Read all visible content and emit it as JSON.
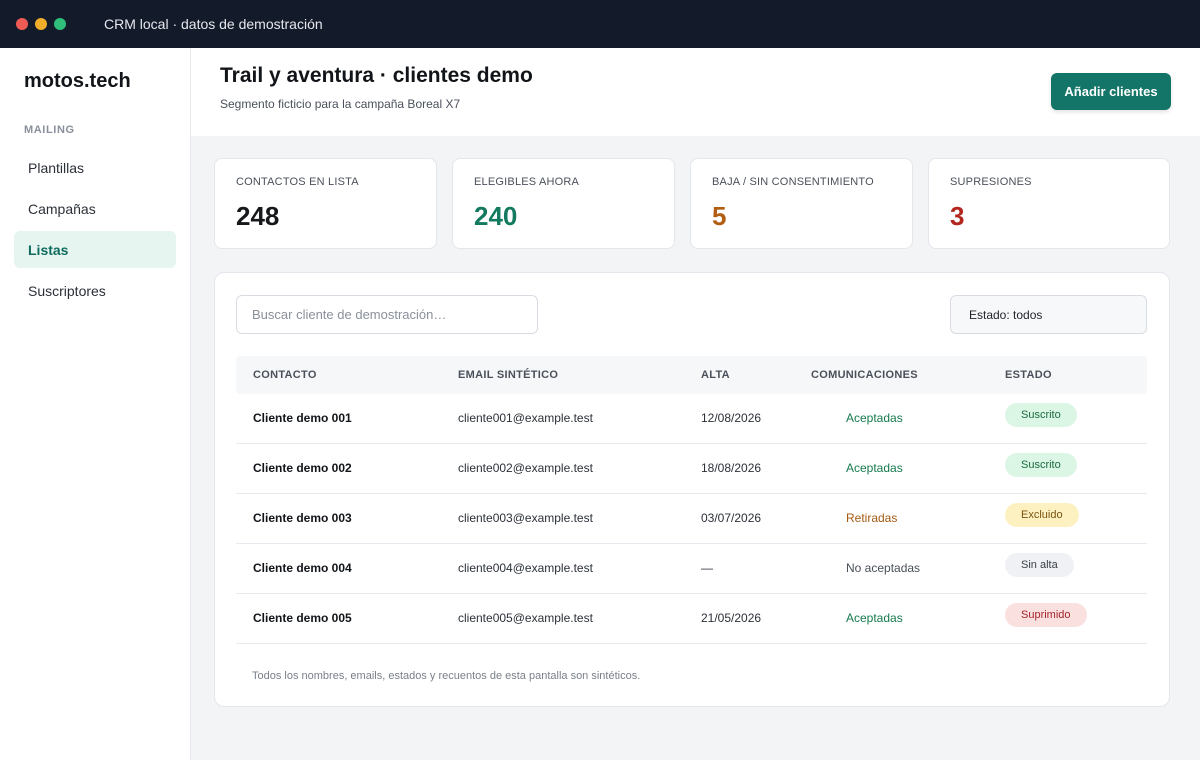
{
  "window": {
    "title": "CRM local · datos de demostración"
  },
  "colors": {
    "accent": "#127567",
    "dot_red": "#ee5b55",
    "dot_yellow": "#f0ad2a",
    "dot_green": "#2fbf7a"
  },
  "sidebar": {
    "brand": "motos.tech",
    "section": "MAILING",
    "items": [
      {
        "label": "Plantillas",
        "active": false
      },
      {
        "label": "Campañas",
        "active": false
      },
      {
        "label": "Listas",
        "active": true
      },
      {
        "label": "Suscriptores",
        "active": false
      }
    ]
  },
  "header": {
    "title": "Trail y aventura · clientes demo",
    "subtitle": "Segmento ficticio para la campaña Boreal X7",
    "add_button": "Añadir clientes"
  },
  "stats": [
    {
      "label": "CONTACTOS EN LISTA",
      "value": "248",
      "color": "#16181c"
    },
    {
      "label": "ELEGIBLES AHORA",
      "value": "240",
      "color": "#137a5f"
    },
    {
      "label": "BAJA / SIN CONSENTIMIENTO",
      "value": "5",
      "color": "#b25e12"
    },
    {
      "label": "SUPRESIONES",
      "value": "3",
      "color": "#b3261e"
    }
  ],
  "table": {
    "search_placeholder": "Buscar cliente de demostración…",
    "filter_label": "Estado: todos",
    "columns": [
      "CONTACTO",
      "EMAIL SINTÉTICO",
      "ALTA",
      "COMUNICACIONES",
      "ESTADO"
    ],
    "rows": [
      {
        "contact": "Cliente demo 001",
        "email": "cliente001@example.test",
        "alta": "12/08/2026",
        "comms": "Aceptadas",
        "comms_color": "#157a4d",
        "status": "Suscrito",
        "status_bg": "#dcf6e6",
        "status_fg": "#1a6b40"
      },
      {
        "contact": "Cliente demo 002",
        "email": "cliente002@example.test",
        "alta": "18/08/2026",
        "comms": "Aceptadas",
        "comms_color": "#157a4d",
        "status": "Suscrito",
        "status_bg": "#dcf6e6",
        "status_fg": "#1a6b40"
      },
      {
        "contact": "Cliente demo 003",
        "email": "cliente003@example.test",
        "alta": "03/07/2026",
        "comms": "Retiradas",
        "comms_color": "#a45a0f",
        "status": "Excluido",
        "status_bg": "#fdf1c2",
        "status_fg": "#7a5410"
      },
      {
        "contact": "Cliente demo 004",
        "email": "cliente004@example.test",
        "alta": "—",
        "comms": "No aceptadas",
        "comms_color": "#4a505a",
        "status": "Sin alta",
        "status_bg": "#eff1f4",
        "status_fg": "#3b4049"
      },
      {
        "contact": "Cliente demo 005",
        "email": "cliente005@example.test",
        "alta": "21/05/2026",
        "comms": "Aceptadas",
        "comms_color": "#157a4d",
        "status": "Suprimido",
        "status_bg": "#fbe0e0",
        "status_fg": "#a3262b"
      }
    ],
    "footnote": "Todos los nombres, emails, estados y recuentos de esta pantalla son sintéticos."
  }
}
